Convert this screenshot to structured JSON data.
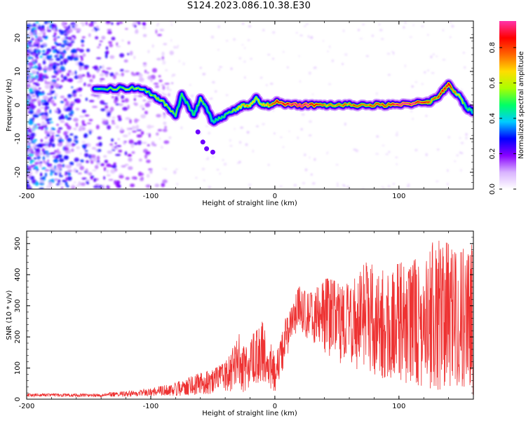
{
  "title": "S124.2023.086.10.38.E30",
  "chart_data": [
    {
      "type": "heatmap",
      "xlabel": "Height of straight line (km)",
      "ylabel": "Frequency (Hz)",
      "xlim": [
        -200,
        160
      ],
      "ylim": [
        -25,
        25
      ],
      "xticks": [
        -200,
        -100,
        0,
        100
      ],
      "yticks": [
        -20,
        -10,
        0,
        10,
        20
      ],
      "grid": false,
      "colorbar": {
        "label": "Normalized spectral amplitude",
        "range": [
          0,
          0.95
        ],
        "ticks": [
          0.0,
          0.2,
          0.4,
          0.6,
          0.8
        ],
        "colors": [
          "#ffffff",
          "#d9b3ff",
          "#8800ff",
          "#0000ff",
          "#00ccff",
          "#00ff66",
          "#aaff00",
          "#ffdd00",
          "#ff6600",
          "#ff0000",
          "#ff33aa"
        ]
      },
      "ridge": {
        "x": [
          -145,
          -130,
          -115,
          -105,
          -95,
          -90,
          -85,
          -80,
          -75,
          -70,
          -65,
          -60,
          -55,
          -50,
          -45,
          -40,
          -35,
          -30,
          -25,
          -20,
          -15,
          -10,
          -5,
          0,
          10,
          20,
          30,
          40,
          50,
          60,
          70,
          80,
          90,
          100,
          110,
          120,
          125,
          130,
          135,
          140,
          145,
          150,
          155,
          160
        ],
        "y": [
          4.5,
          5,
          5,
          4.5,
          2,
          1,
          -1,
          -3,
          3,
          0,
          -3,
          2,
          -1,
          -5,
          -4,
          -3,
          -2,
          -1,
          0,
          0,
          2,
          0,
          0,
          1,
          0,
          0,
          0,
          0,
          0,
          0,
          0,
          0,
          0,
          0,
          0.5,
          1,
          1,
          2,
          4,
          6,
          4,
          2,
          -1,
          -2
        ],
        "amplitude": [
          0.35,
          0.4,
          0.45,
          0.4,
          0.45,
          0.45,
          0.45,
          0.35,
          0.35,
          0.35,
          0.35,
          0.4,
          0.35,
          0.35,
          0.35,
          0.35,
          0.4,
          0.5,
          0.55,
          0.6,
          0.45,
          0.55,
          0.6,
          0.7,
          0.8,
          0.9,
          0.75,
          0.6,
          0.6,
          0.65,
          0.65,
          0.65,
          0.7,
          0.85,
          0.8,
          0.75,
          0.6,
          0.65,
          0.7,
          0.75,
          0.6,
          0.45,
          0.35,
          0.3
        ]
      }
    },
    {
      "type": "line",
      "xlabel": "Height of straight line (km)",
      "ylabel": "SNR (10 * v/v)",
      "xlim": [
        -200,
        160
      ],
      "ylim": [
        0,
        540
      ],
      "xticks": [
        -200,
        -100,
        0,
        100
      ],
      "yticks": [
        0,
        100,
        200,
        300,
        400,
        500
      ],
      "color": "#ee3333",
      "grid": false,
      "envelope": {
        "x": [
          -200,
          -150,
          -120,
          -100,
          -90,
          -80,
          -70,
          -60,
          -50,
          -40,
          -35,
          -30,
          -25,
          -20,
          -15,
          -10,
          -5,
          0,
          5,
          10,
          15,
          20,
          25,
          30,
          40,
          50,
          60,
          70,
          80,
          90,
          100,
          110,
          120,
          130,
          140,
          150,
          160
        ],
        "upper": [
          18,
          18,
          25,
          35,
          45,
          55,
          70,
          85,
          95,
          120,
          150,
          230,
          170,
          200,
          220,
          250,
          200,
          140,
          230,
          280,
          310,
          380,
          350,
          340,
          390,
          380,
          370,
          430,
          460,
          400,
          440,
          440,
          470,
          520,
          500,
          480,
          500
        ],
        "lower": [
          8,
          8,
          8,
          10,
          12,
          10,
          12,
          15,
          15,
          20,
          25,
          40,
          20,
          30,
          50,
          60,
          40,
          20,
          80,
          140,
          200,
          230,
          200,
          180,
          150,
          120,
          100,
          90,
          80,
          60,
          50,
          50,
          40,
          30,
          30,
          20,
          10
        ]
      }
    }
  ]
}
